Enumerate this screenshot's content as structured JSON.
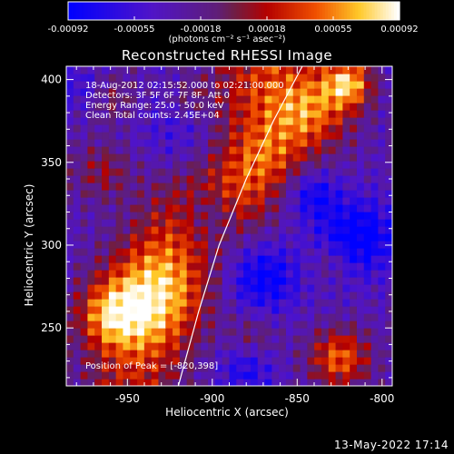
{
  "chart_data": {
    "type": "heatmap",
    "title": "Reconstructed RHESSI Image",
    "xlabel": "Heliocentric X (arcsec)",
    "ylabel": "Heliocentric Y (arcsec)",
    "xlim": [
      -986,
      -794
    ],
    "ylim": [
      215,
      408
    ],
    "x_ticks": [
      "-950",
      "-900",
      "-850",
      "-800"
    ],
    "x_tick_values": [
      -950,
      -900,
      -850,
      -800
    ],
    "y_ticks": [
      "250",
      "300",
      "350",
      "400"
    ],
    "y_tick_values": [
      250,
      300,
      350,
      400
    ],
    "colorbar": {
      "units": "(photons cm⁻² s⁻¹ asec⁻²)",
      "tick_labels": [
        "-0.00092",
        "-0.00055",
        "-0.00018",
        "0.00018",
        "0.00055",
        "0.00092"
      ],
      "range": [
        -0.00092,
        0.00092
      ]
    },
    "annotations": [
      "18-Aug-2012 02:15:52.000 to 02:21:00.000",
      "Detectors: 3F 5F 6F 7F 8F, Att 0",
      "Energy Range: 25.0 - 50.0 keV",
      "Clean    Total counts: 2.45E+04"
    ],
    "peak_label": "Position of Peak = [-820,398]",
    "limb_points": [
      [
        -920,
        215
      ],
      [
        -908,
        260
      ],
      [
        -896,
        300
      ],
      [
        -880,
        340
      ],
      [
        -864,
        375
      ],
      [
        -847,
        408
      ]
    ],
    "bright_regions": [
      {
        "x": -845,
        "y": 382,
        "r": 26,
        "v": 0.0009
      },
      {
        "x": -820,
        "y": 398,
        "r": 14,
        "v": 0.00092
      },
      {
        "x": -870,
        "y": 352,
        "r": 22,
        "v": 0.0006
      },
      {
        "x": -885,
        "y": 325,
        "r": 22,
        "v": 0.00045
      },
      {
        "x": -935,
        "y": 270,
        "r": 30,
        "v": 0.00065
      },
      {
        "x": -960,
        "y": 258,
        "r": 20,
        "v": 0.0007
      },
      {
        "x": -965,
        "y": 345,
        "r": 18,
        "v": 0.0004
      },
      {
        "x": -960,
        "y": 390,
        "r": 16,
        "v": 0.00035
      },
      {
        "x": -825,
        "y": 232,
        "r": 18,
        "v": 0.0008
      },
      {
        "x": -830,
        "y": 290,
        "r": 12,
        "v": 0.0003
      },
      {
        "x": -875,
        "y": 245,
        "r": 14,
        "v": 0.0003
      },
      {
        "x": -915,
        "y": 390,
        "r": 12,
        "v": 0.00025
      }
    ],
    "dark_regions": [
      {
        "x": -910,
        "y": 365,
        "r": 28,
        "v": -0.0005
      },
      {
        "x": -900,
        "y": 320,
        "r": 16,
        "v": -0.0004
      },
      {
        "x": -870,
        "y": 280,
        "r": 20,
        "v": -0.0006
      },
      {
        "x": -815,
        "y": 305,
        "r": 22,
        "v": -0.0007
      },
      {
        "x": -840,
        "y": 330,
        "r": 14,
        "v": -0.0005
      },
      {
        "x": -880,
        "y": 225,
        "r": 16,
        "v": -0.0004
      },
      {
        "x": -975,
        "y": 395,
        "r": 14,
        "v": -0.0003
      }
    ]
  },
  "footer": {
    "timestamp": "13-May-2022 17:14"
  }
}
